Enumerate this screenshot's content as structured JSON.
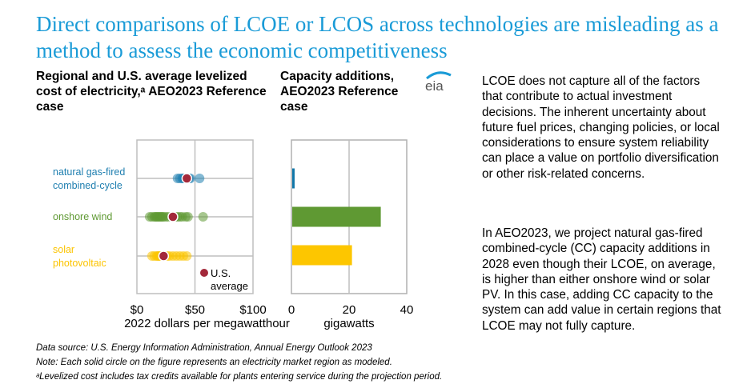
{
  "page": {
    "title": "Direct comparisons of LCOE or LCOS across technologies are misleading as a method to assess the economic competitiveness",
    "logo_label": "eia"
  },
  "text": {
    "paragraph1": "LCOE does not capture all of the factors that contribute to actual investment decisions.  The inherent uncertainty about future fuel prices, changing policies, or local considerations to ensure system reliability can place a value on portfolio diversification or other risk-related concerns.",
    "paragraph2": "In AEO2023, we project natural gas-fired combined-cycle (CC) capacity additions in 2028 even though their LCOE, on average, is higher than either onshore wind or solar PV. In this case, adding CC capacity to the system can add value in certain regions that LCOE may not fully capture."
  },
  "footnotes": {
    "source": "Data source:  U.S. Energy Information Administration, Annual Energy Outlook 2023",
    "note": "Note: Each solid circle on the figure represents an electricity market region as modeled.",
    "footnote_a": "ᵃLevelized cost includes tax credits available for plants entering service during the projection period."
  },
  "colors": {
    "title": "#1a9bd7",
    "gas": "#1f7fb0",
    "wind": "#5f9933",
    "solar": "#fcc400",
    "average": "#a3283a",
    "grid": "#bfbfbf"
  },
  "chart_data": [
    {
      "type": "scatter",
      "title": "Regional and U.S. average levelized cost of electricity,ᵃ AEO2023 Reference case",
      "xlabel": "2022 dollars per megawatthour",
      "ylabel": "",
      "xlim": [
        0,
        100
      ],
      "xticks": [
        "$0",
        "$50",
        "$100"
      ],
      "xtick_values": [
        0,
        50,
        100
      ],
      "grid": true,
      "categories": [
        "natural gas-fired combined-cycle",
        "onshore wind",
        "solar photovoltaic"
      ],
      "category_lines": [
        [
          "natural gas-fired",
          "combined-cycle"
        ],
        [
          "onshore wind"
        ],
        [
          "solar",
          "photovoltaic"
        ]
      ],
      "series": [
        {
          "name": "natural gas-fired combined-cycle",
          "regional_values": [
            35,
            37,
            39,
            40,
            41,
            42,
            44,
            45,
            46,
            54
          ],
          "us_average": 43
        },
        {
          "name": "onshore wind",
          "regional_values": [
            11,
            13,
            15,
            16,
            17,
            18,
            19,
            20,
            21,
            22,
            23,
            25,
            27,
            30,
            33,
            35,
            37,
            39,
            42,
            44,
            57
          ],
          "us_average": 31
        },
        {
          "name": "solar photovoltaic",
          "regional_values": [
            13,
            15,
            17,
            18,
            19,
            20,
            22,
            24,
            26,
            28,
            31,
            34,
            37,
            40,
            43
          ],
          "us_average": 23
        }
      ],
      "legend": {
        "label_line1": "U.S.",
        "label_line2": "average",
        "placement": "bottom-right"
      }
    },
    {
      "type": "bar",
      "title": "Capacity additions, AEO2023 Reference case",
      "xlabel": "gigawatts",
      "xlim": [
        0,
        40
      ],
      "xticks": [
        "0",
        "20",
        "40"
      ],
      "xtick_values": [
        0,
        20,
        40
      ],
      "grid": true,
      "orientation": "horizontal",
      "categories": [
        "natural gas-fired combined-cycle",
        "onshore wind",
        "solar photovoltaic"
      ],
      "values": [
        1.1,
        31,
        21
      ]
    }
  ]
}
